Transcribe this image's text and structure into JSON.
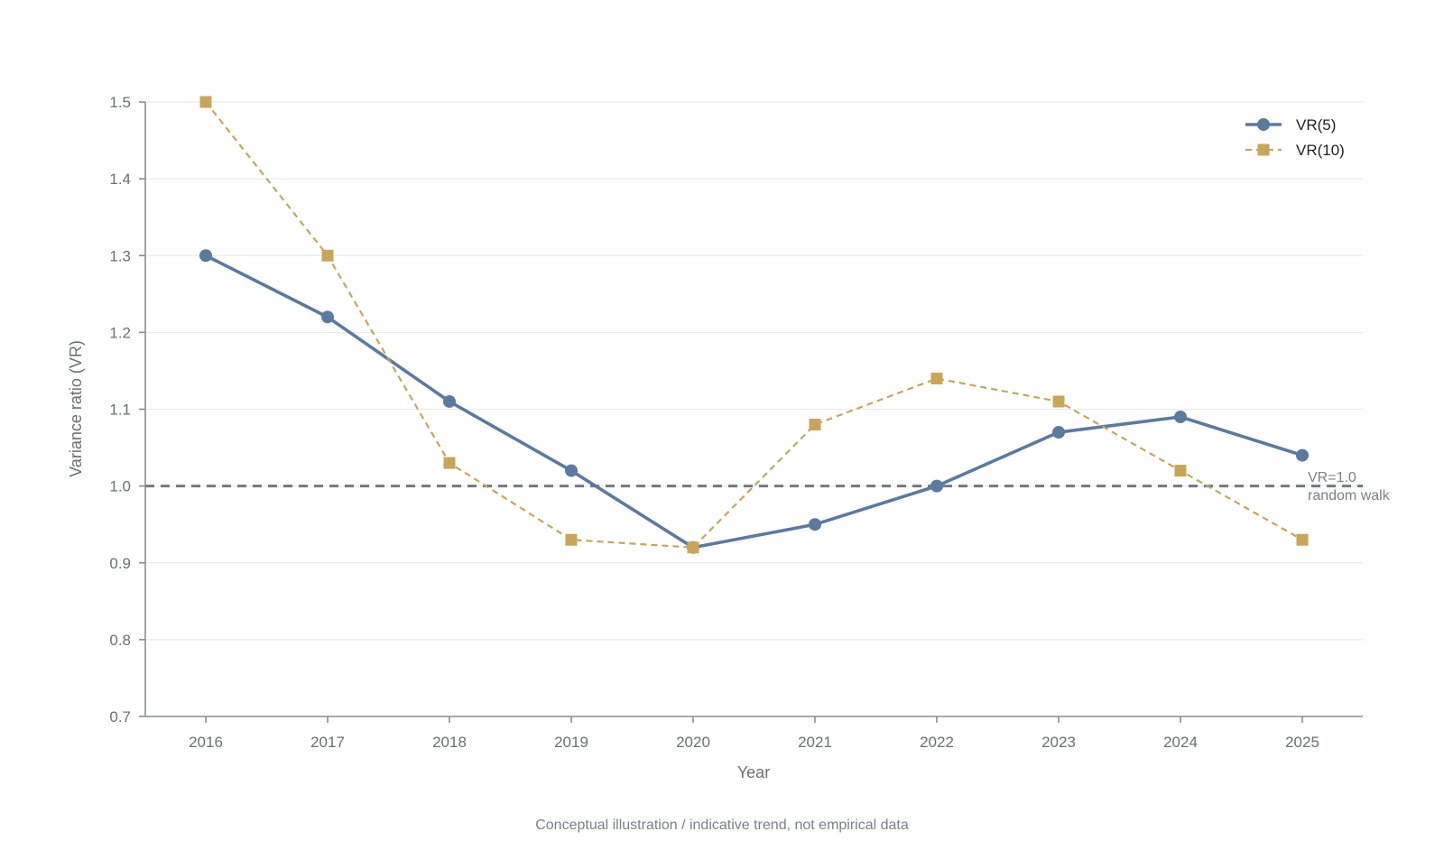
{
  "chart_data": {
    "type": "line",
    "x": [
      "2016",
      "2017",
      "2018",
      "2019",
      "2020",
      "2021",
      "2022",
      "2023",
      "2024",
      "2025"
    ],
    "series": [
      {
        "name": "VR(5)",
        "values": [
          1.3,
          1.22,
          1.11,
          1.02,
          0.92,
          0.95,
          1.0,
          1.07,
          1.09,
          1.04
        ],
        "color": "#5b7aa0",
        "style": "solid",
        "marker": "circle"
      },
      {
        "name": "VR(10)",
        "values": [
          1.5,
          1.3,
          1.03,
          0.93,
          0.92,
          1.08,
          1.14,
          1.11,
          1.02,
          0.93
        ],
        "color": "#c8a55a",
        "style": "dashed",
        "marker": "square"
      }
    ],
    "xlabel": "Year",
    "ylabel": "Variance ratio (VR)",
    "ylim": [
      0.7,
      1.5
    ],
    "yticks": [
      "0.7",
      "0.8",
      "0.9",
      "1.0",
      "1.1",
      "1.2",
      "1.3",
      "1.4",
      "1.5"
    ],
    "grid": "horizontal",
    "legend_position": "top-right",
    "reference_line": {
      "value": 1.0,
      "label_line1": "VR=1.0",
      "label_line2": "random walk",
      "color": "#737883"
    },
    "footnote": "Conceptual illustration / indicative trend, not empirical data"
  }
}
